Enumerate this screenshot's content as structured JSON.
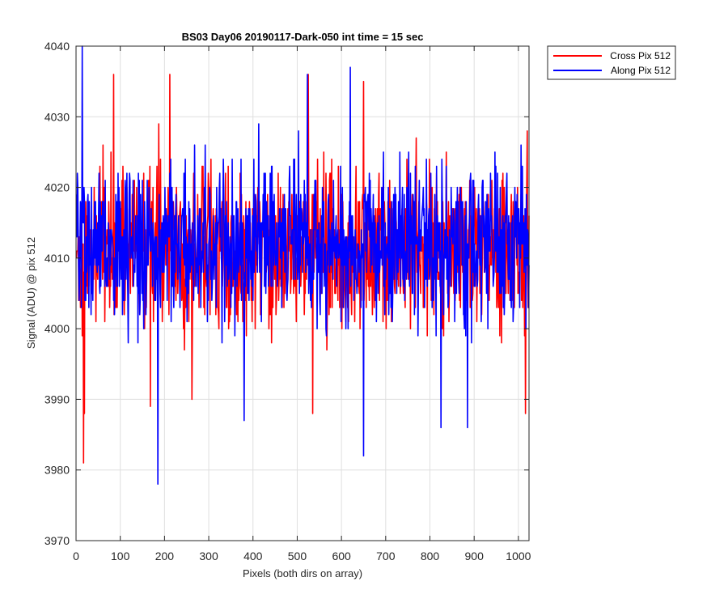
{
  "chart_data": {
    "type": "line",
    "title": "BS03 Day06 20190117-Dark-050 int time = 15 sec",
    "xlabel": "Pixels (both dirs on array)",
    "ylabel": "Signal (ADU) @ pix 512",
    "xlim": [
      0,
      1024
    ],
    "ylim": [
      3970,
      4040
    ],
    "xticks": [
      0,
      100,
      200,
      300,
      400,
      500,
      600,
      700,
      800,
      900,
      1000
    ],
    "yticks": [
      3970,
      3980,
      3990,
      4000,
      4010,
      4020,
      4030,
      4040
    ],
    "grid": true,
    "legend_position": "outside-top-right",
    "series": [
      {
        "name": "Cross Pix 512",
        "color": "#ff0000",
        "x_start": 1,
        "x_step": 1,
        "mean": 4012,
        "noise_amplitude": 9,
        "extremes": [
          {
            "x": 17,
            "y": 3981
          },
          {
            "x": 19,
            "y": 3988
          },
          {
            "x": 85,
            "y": 4036
          },
          {
            "x": 168,
            "y": 3989
          },
          {
            "x": 212,
            "y": 4036
          },
          {
            "x": 262,
            "y": 3990
          },
          {
            "x": 525,
            "y": 4036
          },
          {
            "x": 535,
            "y": 3988
          },
          {
            "x": 650,
            "y": 4035
          },
          {
            "x": 1016,
            "y": 3988
          },
          {
            "x": 1020,
            "y": 4028
          }
        ]
      },
      {
        "name": "Along Pix 512",
        "color": "#0000ff",
        "x_start": 1,
        "x_step": 1,
        "mean": 4012,
        "noise_amplitude": 9,
        "extremes": [
          {
            "x": 14,
            "y": 4040
          },
          {
            "x": 185,
            "y": 3978
          },
          {
            "x": 380,
            "y": 3987
          },
          {
            "x": 523,
            "y": 4036
          },
          {
            "x": 620,
            "y": 4037
          },
          {
            "x": 650,
            "y": 3982
          },
          {
            "x": 825,
            "y": 3986
          },
          {
            "x": 885,
            "y": 3986
          }
        ]
      }
    ]
  }
}
